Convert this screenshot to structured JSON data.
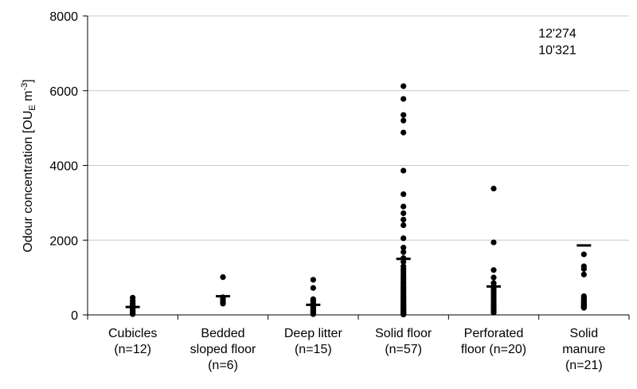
{
  "chart_data": {
    "type": "scatter",
    "title": "",
    "xlabel": "",
    "ylabel": {
      "main": "Odour concentration [OU",
      "sub": "E",
      "unit_pre": " m",
      "sup": "-3",
      "close": "]"
    },
    "ylim": [
      0,
      8000
    ],
    "yticks": [
      0,
      2000,
      4000,
      6000,
      8000
    ],
    "grid": "horizontal",
    "annotation": [
      "12'274",
      "10'321"
    ],
    "categories": [
      {
        "label": [
          "Cubicles",
          "(n=12)"
        ],
        "points": [
          20,
          50,
          80,
          110,
          140,
          180,
          210,
          250,
          280,
          320,
          380,
          460
        ],
        "mean": 210
      },
      {
        "label": [
          "Bedded",
          "sloped floor",
          "(n=6)"
        ],
        "points": [
          300,
          340,
          380,
          420,
          470,
          1010
        ],
        "mean": 500
      },
      {
        "label": [
          "Deep litter",
          "(n=15)"
        ],
        "points": [
          20,
          50,
          80,
          110,
          140,
          170,
          200,
          230,
          260,
          290,
          330,
          380,
          420,
          720,
          940
        ],
        "mean": 270
      },
      {
        "label": [
          "Solid floor",
          "(n=57)"
        ],
        "points": [
          6120,
          5780,
          5350,
          5200,
          4880,
          3860,
          3230,
          2900,
          2720,
          2550,
          2400,
          2050,
          1800,
          1680,
          1520,
          1420,
          1300,
          1220,
          1150,
          1080,
          1010,
          950,
          890,
          840,
          790,
          740,
          700,
          660,
          620,
          580,
          540,
          500,
          465,
          430,
          400,
          370,
          340,
          310,
          280,
          255,
          230,
          205,
          180,
          160,
          140,
          120,
          100,
          85,
          70,
          60,
          50,
          40,
          30,
          25,
          20,
          15,
          10
        ],
        "mean": 1500
      },
      {
        "label": [
          "Perforated",
          "floor (n=20)"
        ],
        "points": [
          3380,
          1940,
          1200,
          1000,
          850,
          760,
          700,
          640,
          580,
          520,
          460,
          400,
          340,
          290,
          240,
          200,
          160,
          120,
          90,
          60
        ],
        "mean": 760
      },
      {
        "label": [
          "Solid",
          "manure",
          "(n=21)"
        ],
        "points": [
          1620,
          1300,
          1230,
          1080,
          500,
          460,
          430,
          400,
          380,
          360,
          340,
          320,
          300,
          280,
          260,
          240,
          230,
          220,
          210,
          200,
          190
        ],
        "mean": 1860
      }
    ]
  }
}
